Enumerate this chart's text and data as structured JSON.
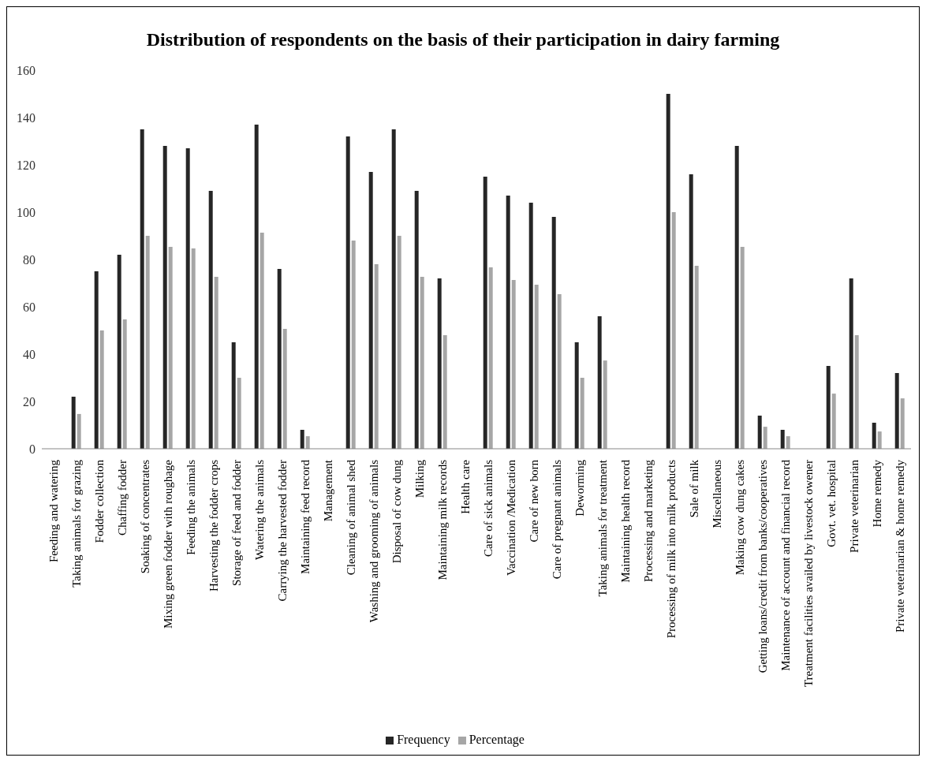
{
  "chart_data": {
    "type": "bar",
    "title": "Distribution of respondents on the basis of their participation in dairy farming",
    "categories": [
      "Feeding and watering",
      "Taking animals for grazing",
      "Fodder collection",
      "Chaffing fodder",
      "Soaking of concentrates",
      "Mixing green fodder with roughage",
      "Feeding the animals",
      "Harvesting the fodder crops",
      "Storage of feed and fodder",
      "Watering the animals",
      "Carrying the harvested fodder",
      "Maintaining feed record",
      "Management",
      "Cleaning of animal shed",
      "Washing and grooming of animals",
      "Disposal of cow dung",
      "Milking",
      "Maintaining milk records",
      "Health care",
      "Care of sick animals",
      "Vaccination /Medication",
      "Care of new born",
      "Care of pregnant animals",
      "Deworming",
      "Taking animals for treatment",
      "Maintaining health record",
      "Processing and marketing",
      "Processing of milk into milk products",
      "Sale of milk",
      "Miscellaneous",
      "Making cow dung cakes",
      "Getting loans/credit from banks/cooperatives",
      "Maintenance of account and financial record",
      "Treatment facilities availed by livestock owener",
      "Govt. vet. hospital",
      "Private veterinarian",
      "Home remedy",
      "Private veterinarian & home remedy"
    ],
    "series": [
      {
        "name": "Frequency",
        "color": "#262626",
        "values": [
          null,
          22,
          75,
          82,
          135,
          128,
          127,
          109,
          45,
          137,
          76,
          8,
          null,
          132,
          117,
          135,
          109,
          72,
          null,
          115,
          107,
          104,
          98,
          45,
          56,
          null,
          null,
          150,
          116,
          null,
          128,
          14,
          8,
          null,
          35,
          72,
          11,
          32
        ]
      },
      {
        "name": "Percentage",
        "color": "#a6a6a6",
        "values": [
          null,
          14.7,
          50,
          54.7,
          90,
          85.3,
          84.7,
          72.7,
          30,
          91.3,
          50.7,
          5.3,
          null,
          88,
          78,
          90,
          72.7,
          48,
          null,
          76.7,
          71.3,
          69.3,
          65.3,
          30,
          37.3,
          null,
          null,
          100,
          77.3,
          null,
          85.3,
          9.3,
          5.3,
          null,
          23.3,
          48,
          7.3,
          21.3
        ]
      }
    ],
    "ylim": [
      0,
      160
    ],
    "yticks": [
      0,
      20,
      40,
      60,
      80,
      100,
      120,
      140,
      160
    ],
    "grid": false,
    "legend": "bottom"
  }
}
